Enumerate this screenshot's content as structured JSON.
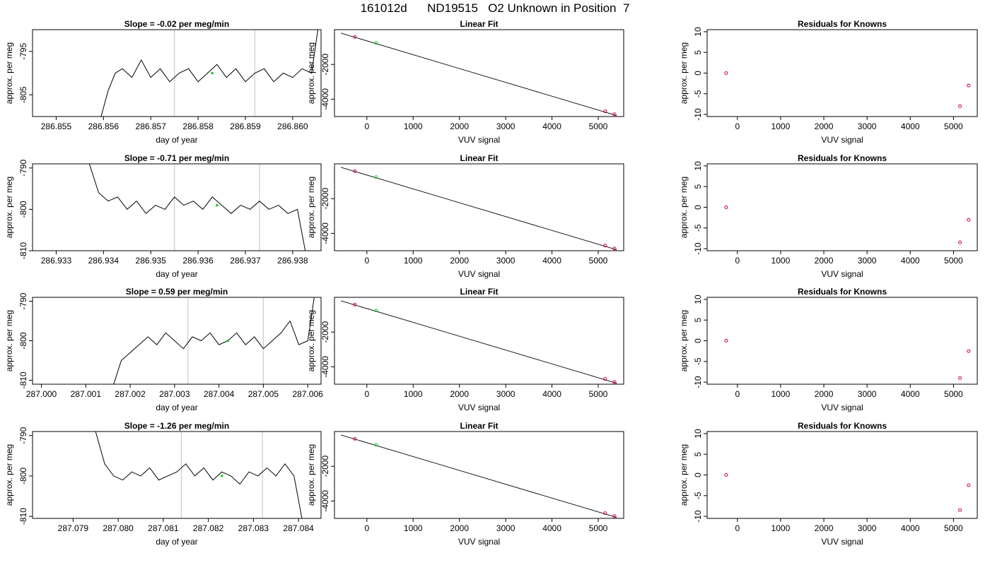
{
  "page": {
    "title": "161012d      ND19515   O2 Unknown in Position  7"
  },
  "chart_data": [
    {
      "type": "line",
      "title": "Slope =  -0.02  per meg/min",
      "xlabel": "day of year",
      "ylabel": "approx. per meg",
      "xlim": [
        286.8545,
        286.8606
      ],
      "ylim": [
        -810,
        -790
      ],
      "xticks": [
        "286.855",
        "286.856",
        "286.857",
        "286.858",
        "286.859",
        "286.860"
      ],
      "xtick_values": [
        286.855,
        286.856,
        286.857,
        286.858,
        286.859,
        286.86
      ],
      "yticks": [
        "-795",
        "-805"
      ],
      "ytick_values": [
        -795,
        -805
      ],
      "vlines": [
        286.8575,
        286.8592
      ],
      "series": [
        {
          "x": [
            286.8559,
            286.8561,
            286.85625,
            286.8564,
            286.8566,
            286.8568,
            286.857,
            286.8572,
            286.8574,
            286.8576,
            286.8578,
            286.858,
            286.8582,
            286.8584,
            286.8586,
            286.8588,
            286.859,
            286.8592,
            286.8594,
            286.8596,
            286.8598,
            286.86,
            286.8602,
            286.8604,
            286.8606
          ],
          "y": [
            -812,
            -804,
            -800,
            -799,
            -801,
            -797,
            -801,
            -799,
            -802,
            -800,
            -799,
            -802,
            -800,
            -798,
            -801,
            -799,
            -802,
            -800,
            -799,
            -802,
            -800,
            -801,
            -799,
            -800,
            -785
          ]
        }
      ],
      "highlight": {
        "x": 286.8583,
        "y": -800
      }
    },
    {
      "type": "line",
      "title": "Linear Fit",
      "xlabel": "VUV signal",
      "ylabel": "approx. per meg",
      "xlim": [
        -700,
        5550
      ],
      "ylim": [
        -5000,
        0
      ],
      "xticks": [
        "0",
        "1000",
        "2000",
        "3000",
        "4000",
        "5000"
      ],
      "xtick_values": [
        0,
        1000,
        2000,
        3000,
        4000,
        5000
      ],
      "yticks": [
        "-2000",
        "-4000"
      ],
      "ytick_values": [
        -2000,
        -4000
      ],
      "fit_line": {
        "x": [
          -560,
          5400
        ],
        "y": [
          -200,
          -4945
        ]
      },
      "known_points": {
        "x": [
          -260,
          5150,
          5350
        ],
        "y": [
          -420,
          -4700,
          -4870
        ]
      },
      "unknown_point": {
        "x": 200,
        "y": -760
      }
    },
    {
      "type": "scatter",
      "title": "Residuals for Knowns",
      "xlabel": "VUV signal",
      "ylabel": "approx. per meg",
      "xlim": [
        -700,
        5550
      ],
      "ylim": [
        -10.5,
        10.5
      ],
      "xticks": [
        "0",
        "1000",
        "2000",
        "3000",
        "4000",
        "5000"
      ],
      "xtick_values": [
        0,
        1000,
        2000,
        3000,
        4000,
        5000
      ],
      "yticks": [
        "-10",
        "-5",
        "0",
        "5",
        "10"
      ],
      "ytick_values": [
        -10,
        -5,
        0,
        5,
        10
      ],
      "points": {
        "x": [
          -260,
          5150,
          5350
        ],
        "y": [
          0,
          -8,
          -3
        ]
      }
    },
    {
      "type": "line",
      "title": "Slope =  -0.71  per meg/min",
      "xlabel": "day of year",
      "ylabel": "approx. per meg",
      "xlim": [
        286.9325,
        286.9386
      ],
      "ylim": [
        -810,
        -789
      ],
      "xticks": [
        "286.933",
        "286.934",
        "286.935",
        "286.936",
        "286.937",
        "286.938"
      ],
      "xtick_values": [
        286.933,
        286.934,
        286.935,
        286.936,
        286.937,
        286.938
      ],
      "yticks": [
        "-790",
        "-800",
        "-810"
      ],
      "ytick_values": [
        -790,
        -800,
        -810
      ],
      "vlines": [
        286.9355,
        286.9373
      ],
      "series": [
        {
          "x": [
            286.9337,
            286.9339,
            286.9341,
            286.9343,
            286.9345,
            286.9347,
            286.9349,
            286.9351,
            286.9353,
            286.9355,
            286.9357,
            286.9359,
            286.9361,
            286.9363,
            286.9365,
            286.9367,
            286.9369,
            286.9371,
            286.9373,
            286.9375,
            286.9377,
            286.9379,
            286.9381,
            286.9383
          ],
          "y": [
            -789,
            -796,
            -798,
            -797,
            -800,
            -798,
            -801,
            -799,
            -800,
            -797,
            -799,
            -798,
            -800,
            -797,
            -799,
            -801,
            -799,
            -800,
            -798,
            -800,
            -799,
            -801,
            -800,
            -812
          ]
        }
      ],
      "highlight": {
        "x": 286.9364,
        "y": -799
      }
    },
    {
      "type": "line",
      "title": "Linear Fit",
      "xlabel": "VUV signal",
      "ylabel": "approx. per meg",
      "xlim": [
        -700,
        5550
      ],
      "ylim": [
        -5000,
        0
      ],
      "xticks": [
        "0",
        "1000",
        "2000",
        "3000",
        "4000",
        "5000"
      ],
      "xtick_values": [
        0,
        1000,
        2000,
        3000,
        4000,
        5000
      ],
      "yticks": [
        "-2000",
        "-4000"
      ],
      "ytick_values": [
        -2000,
        -4000
      ],
      "fit_line": {
        "x": [
          -560,
          5400
        ],
        "y": [
          -200,
          -4945
        ]
      },
      "known_points": {
        "x": [
          -260,
          5150,
          5350
        ],
        "y": [
          -420,
          -4700,
          -4870
        ]
      },
      "unknown_point": {
        "x": 200,
        "y": -760
      }
    },
    {
      "type": "scatter",
      "title": "Residuals for Knowns",
      "xlabel": "VUV signal",
      "ylabel": "approx. per meg",
      "xlim": [
        -700,
        5550
      ],
      "ylim": [
        -10.5,
        10.5
      ],
      "xticks": [
        "0",
        "1000",
        "2000",
        "3000",
        "4000",
        "5000"
      ],
      "xtick_values": [
        0,
        1000,
        2000,
        3000,
        4000,
        5000
      ],
      "yticks": [
        "-10",
        "-5",
        "0",
        "5",
        "10"
      ],
      "ytick_values": [
        -10,
        -5,
        0,
        5,
        10
      ],
      "points": {
        "x": [
          -260,
          5150,
          5350
        ],
        "y": [
          0,
          -8.5,
          -3
        ]
      }
    },
    {
      "type": "line",
      "title": "Slope =  0.59  per meg/min",
      "xlabel": "day of year",
      "ylabel": "approx. per meg",
      "xlim": [
        286.9998,
        287.0063
      ],
      "ylim": [
        -811,
        -789
      ],
      "xticks": [
        "287.000",
        "287.001",
        "287.002",
        "287.003",
        "287.004",
        "287.005",
        "287.006"
      ],
      "xtick_values": [
        287.0,
        287.001,
        287.002,
        287.003,
        287.004,
        287.005,
        287.006
      ],
      "yticks": [
        "-790",
        "-800",
        "-810"
      ],
      "ytick_values": [
        -790,
        -800,
        -810
      ],
      "vlines": [
        287.0033,
        287.005
      ],
      "series": [
        {
          "x": [
            287.0016,
            287.0018,
            287.002,
            287.0022,
            287.0024,
            287.0026,
            287.0028,
            287.003,
            287.0032,
            287.0034,
            287.0036,
            287.0038,
            287.004,
            287.0042,
            287.0044,
            287.0046,
            287.0048,
            287.005,
            287.0052,
            287.0054,
            287.0056,
            287.0058,
            287.006,
            287.0062
          ],
          "y": [
            -812,
            -805,
            -803,
            -801,
            -799,
            -801,
            -798,
            -800,
            -802,
            -799,
            -800,
            -798,
            -801,
            -800,
            -798,
            -801,
            -799,
            -802,
            -800,
            -798,
            -795,
            -801,
            -800,
            -785
          ]
        }
      ],
      "highlight": {
        "x": 287.0042,
        "y": -800
      }
    },
    {
      "type": "line",
      "title": "Linear Fit",
      "xlabel": "VUV signal",
      "ylabel": "approx. per meg",
      "xlim": [
        -700,
        5550
      ],
      "ylim": [
        -5000,
        0
      ],
      "xticks": [
        "0",
        "1000",
        "2000",
        "3000",
        "4000",
        "5000"
      ],
      "xtick_values": [
        0,
        1000,
        2000,
        3000,
        4000,
        5000
      ],
      "yticks": [
        "-2000",
        "-4000"
      ],
      "ytick_values": [
        -2000,
        -4000
      ],
      "fit_line": {
        "x": [
          -560,
          5400
        ],
        "y": [
          -200,
          -4945
        ]
      },
      "known_points": {
        "x": [
          -260,
          5150,
          5350
        ],
        "y": [
          -420,
          -4700,
          -4870
        ]
      },
      "unknown_point": {
        "x": 200,
        "y": -760
      }
    },
    {
      "type": "scatter",
      "title": "Residuals for Knowns",
      "xlabel": "VUV signal",
      "ylabel": "approx. per meg",
      "xlim": [
        -700,
        5550
      ],
      "ylim": [
        -10.5,
        10.5
      ],
      "xticks": [
        "0",
        "1000",
        "2000",
        "3000",
        "4000",
        "5000"
      ],
      "xtick_values": [
        0,
        1000,
        2000,
        3000,
        4000,
        5000
      ],
      "yticks": [
        "-10",
        "-5",
        "0",
        "5",
        "10"
      ],
      "ytick_values": [
        -10,
        -5,
        0,
        5,
        10
      ],
      "points": {
        "x": [
          -260,
          5150,
          5350
        ],
        "y": [
          0,
          -9,
          -2.5
        ]
      }
    },
    {
      "type": "line",
      "title": "Slope =  -1.26  per meg/min",
      "xlabel": "day of year",
      "ylabel": "approx. per meg",
      "xlim": [
        287.0781,
        287.0845
      ],
      "ylim": [
        -810.5,
        -789
      ],
      "xticks": [
        "287.079",
        "287.080",
        "287.081",
        "287.082",
        "287.083",
        "287.084"
      ],
      "xtick_values": [
        287.079,
        287.08,
        287.081,
        287.082,
        287.083,
        287.084
      ],
      "yticks": [
        "-790",
        "-800",
        "-810"
      ],
      "ytick_values": [
        -790,
        -800,
        -810
      ],
      "vlines": [
        287.0814,
        287.0832
      ],
      "series": [
        {
          "x": [
            287.0795,
            287.0797,
            287.0799,
            287.0801,
            287.0803,
            287.0805,
            287.0807,
            287.0809,
            287.0811,
            287.0813,
            287.0815,
            287.0817,
            287.0819,
            287.0821,
            287.0823,
            287.0825,
            287.0827,
            287.0829,
            287.0831,
            287.0833,
            287.0835,
            287.0837,
            287.0839,
            287.0841
          ],
          "y": [
            -789,
            -797,
            -800,
            -801,
            -799,
            -800,
            -798,
            -801,
            -800,
            -799,
            -797,
            -800,
            -798,
            -801,
            -799,
            -800,
            -802,
            -799,
            -800,
            -798,
            -800,
            -797,
            -800,
            -812
          ]
        }
      ],
      "highlight": {
        "x": 287.0823,
        "y": -800
      }
    },
    {
      "type": "line",
      "title": "Linear Fit",
      "xlabel": "VUV signal",
      "ylabel": "approx. per meg",
      "xlim": [
        -700,
        5550
      ],
      "ylim": [
        -5000,
        0
      ],
      "xticks": [
        "0",
        "1000",
        "2000",
        "3000",
        "4000",
        "5000"
      ],
      "xtick_values": [
        0,
        1000,
        2000,
        3000,
        4000,
        5000
      ],
      "yticks": [
        "-2000",
        "-4000"
      ],
      "ytick_values": [
        -2000,
        -4000
      ],
      "fit_line": {
        "x": [
          -560,
          5400
        ],
        "y": [
          -200,
          -4945
        ]
      },
      "known_points": {
        "x": [
          -260,
          5150,
          5350
        ],
        "y": [
          -420,
          -4700,
          -4870
        ]
      },
      "unknown_point": {
        "x": 200,
        "y": -760
      }
    },
    {
      "type": "scatter",
      "title": "Residuals for Knowns",
      "xlabel": "VUV signal",
      "ylabel": "approx. per meg",
      "xlim": [
        -700,
        5550
      ],
      "ylim": [
        -10.5,
        10.5
      ],
      "xticks": [
        "0",
        "1000",
        "2000",
        "3000",
        "4000",
        "5000"
      ],
      "xtick_values": [
        0,
        1000,
        2000,
        3000,
        4000,
        5000
      ],
      "yticks": [
        "-10",
        "-5",
        "0",
        "5",
        "10"
      ],
      "ytick_values": [
        -10,
        -5,
        0,
        5,
        10
      ],
      "points": {
        "x": [
          -260,
          5150,
          5350
        ],
        "y": [
          0,
          -8.5,
          -2.5
        ]
      }
    }
  ],
  "colors": {
    "axis": "#000000",
    "trace": "#000000",
    "vline": "#cccccc",
    "known_point": "#cc0033",
    "unknown_point": "#22cc22"
  }
}
